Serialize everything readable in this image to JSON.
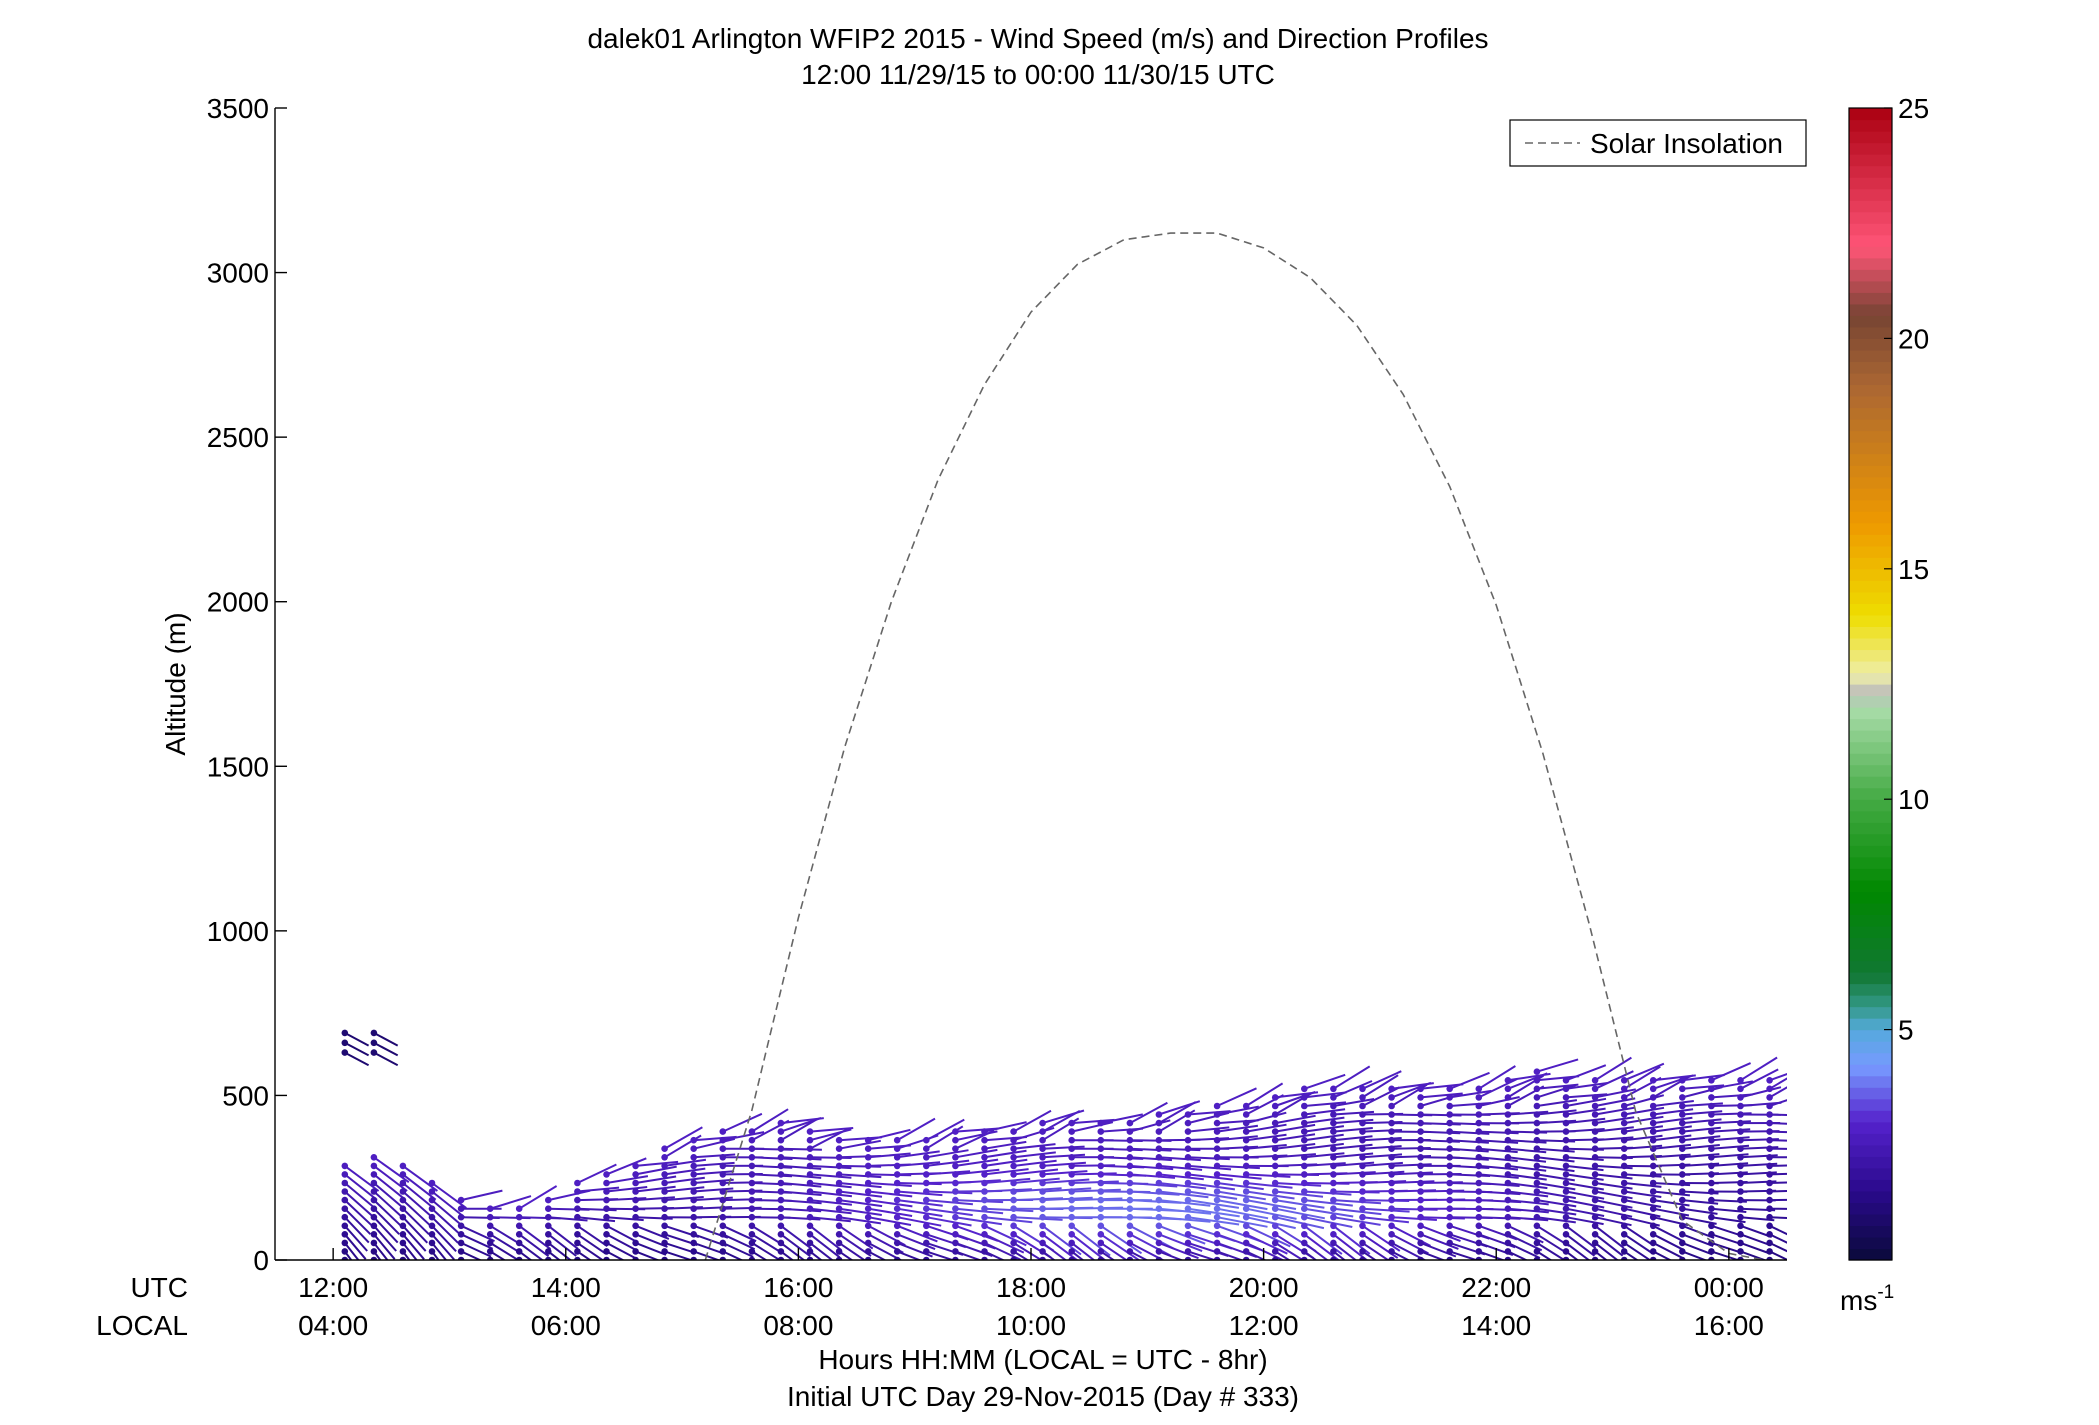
{
  "chart_data": {
    "type": "barbs",
    "title": "dalek01 Arlington WFIP2 2015 - Wind Speed (m/s) and Direction Profiles",
    "subtitle": "12:00 11/29/15 to 00:00 11/30/15  UTC",
    "ylabel": "Altitude (m)",
    "xlabel_line1": "Hours HH:MM  (LOCAL = UTC - 8hr)",
    "xlabel_line2": "Initial UTC Day 29-Nov-2015 (Day # 333)",
    "ylim": [
      0,
      3500
    ],
    "xlim_hours": [
      11.5,
      24.5
    ],
    "yticks": [
      "0",
      "500",
      "1000",
      "1500",
      "2000",
      "2500",
      "3000",
      "3500"
    ],
    "xtick_utc": [
      "12:00",
      "14:00",
      "16:00",
      "18:00",
      "20:00",
      "22:00",
      "00:00"
    ],
    "xtick_local": [
      "04:00",
      "06:00",
      "08:00",
      "10:00",
      "12:00",
      "14:00",
      "16:00"
    ],
    "xtick_hours": [
      12,
      14,
      16,
      18,
      20,
      22,
      24
    ],
    "row_label_utc": "UTC",
    "row_label_local": "LOCAL",
    "legend": {
      "label": "Solar Insolation",
      "placement": "top-right",
      "line_style": "dashed",
      "color": "#666666"
    },
    "colorbar": {
      "min": 0,
      "max": 25,
      "ticks": [
        "5",
        "10",
        "15",
        "20",
        "25"
      ],
      "tick_values": [
        5,
        10,
        15,
        20,
        25
      ],
      "unit_base": "ms",
      "unit_exp": "-1",
      "stops": [
        {
          "v": 0,
          "c": "#0a0a3a"
        },
        {
          "v": 1.5,
          "c": "#2a0a8c"
        },
        {
          "v": 3,
          "c": "#5522cc"
        },
        {
          "v": 4.2,
          "c": "#7799ff"
        },
        {
          "v": 5,
          "c": "#55aadd"
        },
        {
          "v": 5.5,
          "c": "#339988"
        },
        {
          "v": 6.2,
          "c": "#117733"
        },
        {
          "v": 8,
          "c": "#008800"
        },
        {
          "v": 10,
          "c": "#44aa44"
        },
        {
          "v": 12,
          "c": "#aaddaa"
        },
        {
          "v": 12.3,
          "c": "#bbbbbb"
        },
        {
          "v": 12.7,
          "c": "#eeeeaa"
        },
        {
          "v": 14,
          "c": "#eedd00"
        },
        {
          "v": 16,
          "c": "#ee9900"
        },
        {
          "v": 19,
          "c": "#aa6633"
        },
        {
          "v": 20.5,
          "c": "#774433"
        },
        {
          "v": 22,
          "c": "#ff5577"
        },
        {
          "v": 25,
          "c": "#aa0011"
        }
      ]
    },
    "solar_insolation": {
      "x_hours": [
        15.2,
        15.6,
        16.0,
        16.4,
        16.8,
        17.2,
        17.6,
        18.0,
        18.4,
        18.8,
        19.2,
        19.6,
        20.0,
        20.4,
        20.8,
        21.2,
        21.6,
        22.0,
        22.4,
        22.8,
        23.2,
        23.6,
        24.0,
        24.3
      ],
      "y_alt": [
        0,
        455,
        1040,
        1560,
        2000,
        2370,
        2660,
        2880,
        3025,
        3100,
        3120,
        3120,
        3075,
        2985,
        2840,
        2630,
        2350,
        1990,
        1540,
        1020,
        450,
        120,
        20,
        0
      ]
    },
    "wind_profiles": {
      "times_hours": [
        12.1,
        12.35,
        12.6,
        12.85,
        13.1,
        13.35,
        13.6,
        13.85,
        14.1,
        14.35,
        14.6,
        14.85,
        15.1,
        15.35,
        15.6,
        15.85,
        16.1,
        16.35,
        16.6,
        16.85,
        17.1,
        17.35,
        17.6,
        17.85,
        18.1,
        18.35,
        18.6,
        18.85,
        19.1,
        19.35,
        19.6,
        19.85,
        20.1,
        20.35,
        20.6,
        20.85,
        21.1,
        21.35,
        21.6,
        21.85,
        22.1,
        22.35,
        22.6,
        22.85,
        23.1,
        23.35,
        23.6,
        23.85,
        24.1,
        24.35
      ],
      "top_altitudes_m": [
        310,
        320,
        300,
        250,
        200,
        170,
        160,
        200,
        250,
        280,
        310,
        340,
        370,
        400,
        410,
        420,
        390,
        380,
        370,
        370,
        380,
        390,
        400,
        410,
        420,
        430,
        430,
        440,
        450,
        460,
        470,
        480,
        500,
        520,
        540,
        540,
        540,
        530,
        530,
        520,
        550,
        580,
        570,
        560,
        550,
        560,
        570,
        560,
        550,
        550
      ],
      "level_spacing_m": 26,
      "surface_altitude_m": 0,
      "isolated_levels": {
        "times_hours": [
          12.1,
          12.35
        ],
        "altitudes_m": [
          630,
          660,
          690
        ]
      },
      "max_speed_ms": 4.3,
      "gust_center_hours": 19.2
    }
  }
}
